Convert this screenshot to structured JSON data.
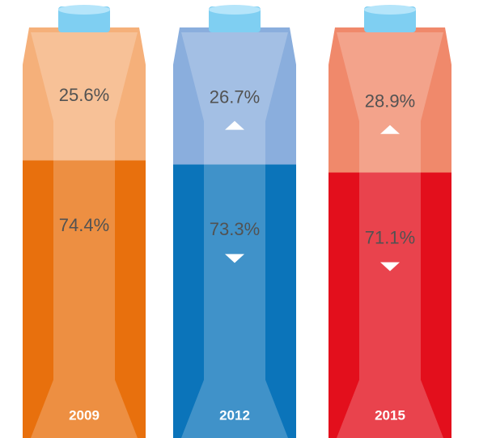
{
  "chart_data": {
    "type": "stacked-bar",
    "categories": [
      "2009",
      "2012",
      "2015"
    ],
    "series": [
      {
        "values": [
          74.4,
          73.3,
          71.1
        ],
        "value_labels": [
          "74.4%",
          "73.3%",
          "71.1%"
        ],
        "colors": [
          "#e8700d",
          "#0b74ba",
          "#e30f1c"
        ]
      },
      {
        "values": [
          25.6,
          26.7,
          28.9
        ],
        "value_labels": [
          "25.6%",
          "26.7%",
          "28.9%"
        ],
        "colors": [
          "#f5b07a",
          "#8aaedd",
          "#f0896b"
        ]
      }
    ],
    "ylim": [
      0,
      100
    ]
  }
}
